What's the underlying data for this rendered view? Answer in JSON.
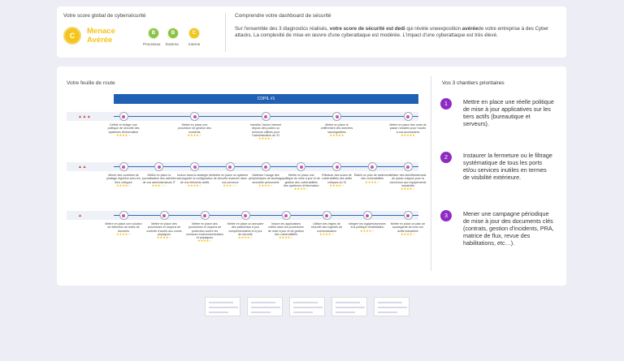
{
  "global_score": {
    "title": "Votre score global de cybersécurité",
    "badge_letter": "C",
    "level_line1": "Menace",
    "level_line2": "Avérée",
    "sub_scores": [
      {
        "letter": "B",
        "label": "Processus",
        "color": "#8bc34a"
      },
      {
        "letter": "B",
        "label": "Externe",
        "color": "#8bc34a"
      },
      {
        "letter": "C",
        "label": "Interne",
        "color": "#f5c518"
      }
    ]
  },
  "understand": {
    "title": "Comprendre votre dashboard de sécurité",
    "text_before": "Sur l'ensemble des 3 diagnostics réalisés, ",
    "text_bold1": "votre score de sécurité est dedi",
    "text_mid": " qui révèle uneexposition ",
    "text_bold2": "avérée",
    "text_after": "de votre entreprise à des Cyber attacks. La complexité de mise en œuvre d'une cyberattaque est modérée. L'impact d'une cyberattaque est très élevé."
  },
  "roadmap": {
    "title": "Votre feuille de route",
    "header": "COPIL #1",
    "rows": [
      {
        "priority": "▲▲▲",
        "actions": [
          {
            "text": "Définir et rédiger une politique de sécurité des systèmes d'information",
            "stars": "★★★★☆"
          },
          {
            "text": "Mettre en place une procédure de gestion des incidents",
            "stars": "★★★★☆"
          },
          {
            "text": "Interdire l'accès internet depuis des postes ou serveurs utilisés pour l'administration du SI",
            "stars": "★★★★☆"
          },
          {
            "text": "Mettre en place le chiffrement des données sauvegardées",
            "stars": "★★★★★"
          },
          {
            "text": "Mettre en place des mots de passe robustes pour l'accès à vos accessoires",
            "stars": "★★★★★"
          }
        ]
      },
      {
        "priority": "▲▲",
        "actions": [
          {
            "text": "Mener des contrôles de piratage réguliers avec les tiers critiques",
            "stars": "★★★★☆"
          },
          {
            "text": "Mettre en place la journalisation des activités de vos administrateurs IT",
            "stars": "★★★☆☆"
          },
          {
            "text": "Inclure dans la stratégie de sauvegarde la configuration de vos éléments actifs",
            "stars": "★★★★☆"
          },
          {
            "text": "Mettre en place un système de sécurité avancée dans vos serveurs",
            "stars": "★★★☆☆"
          },
          {
            "text": "Maîtriser l'usage des périphériques de stockage amovible personnels",
            "stars": "★★★★☆"
          },
          {
            "text": "Mettre en place une politique de mise à jour et de gestion des vulnérabilités des systèmes d'information",
            "stars": "★★★★☆"
          },
          {
            "text": "Effectuer des scans de vulnérabilités des actifs critiques du SI",
            "stars": "★★★★☆"
          },
          {
            "text": "Établir un plan de traitement des vulnérabilités",
            "stars": "★★★★☆"
          },
          {
            "text": "Utiliser des identifiants/mots de passe uniques pour la connexion aux équipements industriels",
            "stars": "★★★★☆"
          }
        ]
      },
      {
        "priority": "▲",
        "actions": [
          {
            "text": "Mettre en place une solution de détection de fuites de données",
            "stars": "★★★★☆"
          },
          {
            "text": "Mettre en place des procédures et moyens de contrôle d'accès aux zones physiques",
            "stars": "★★★★☆"
          },
          {
            "text": "Mettre en place des procédures et moyens de protection contre les menaces environnementales et physiques",
            "stars": "★★★★☆"
          },
          {
            "text": "Mettre en place un annuaire des patch/mise à jour complémentaires et à jour de sécurité",
            "stars": "★★★★☆"
          },
          {
            "text": "Inclure les applications métier dans les procédures de mise à jour et de gestion des vulnérabilités",
            "stars": "★★★★☆"
          },
          {
            "text": "Utiliser des règles de sécurité des logiciels de communication",
            "stars": "★★★★☆"
          },
          {
            "text": "Intégrer les logiciels/services à la politique d'habilitation",
            "stars": "★★★★☆"
          },
          {
            "text": "Mettre en place un plan de sauvegarde de tous vos actifs industriels",
            "stars": "★★★★☆"
          }
        ]
      }
    ]
  },
  "priorities": {
    "title": "Vos 3 chantiers prioritaires",
    "items": [
      {
        "num": "1",
        "text": "Mettre en place une réelle politique de mise à jour applicatives sur les tiers actifs (bureautique et serveurs)."
      },
      {
        "num": "2",
        "text": "Instaurer la fermeture ou le filtrage systématique de tous les ports et/ou services inutiles en termes de visibilité extérieure."
      },
      {
        "num": "3",
        "text": "Mener une campagne périodique de mise à jour des documents clés (contrats, gestion d'incidents, PRA, matrice de flux, revue des habilitations, etc…)."
      }
    ]
  },
  "thumbnails": [
    "page-1",
    "page-2",
    "page-3",
    "page-4",
    "page-5"
  ]
}
